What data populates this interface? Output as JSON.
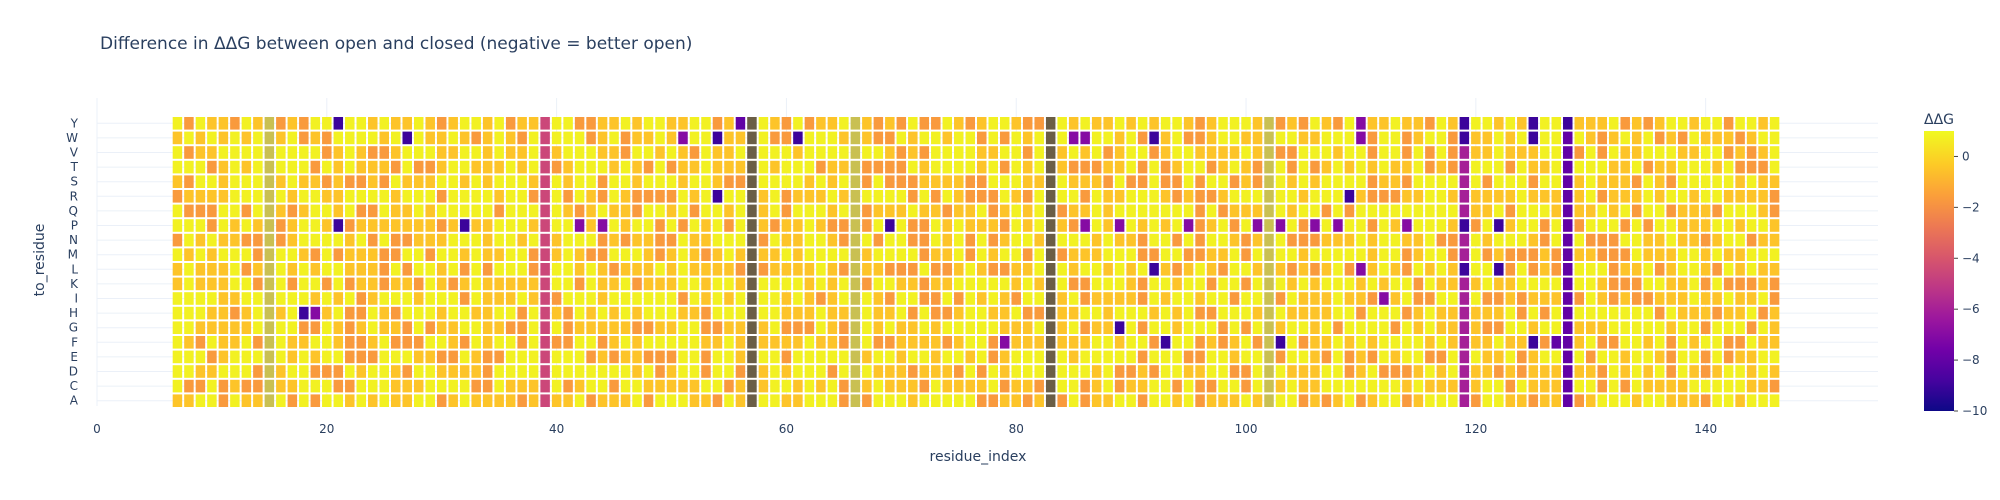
{
  "chart_data": {
    "type": "heatmap",
    "title": "Difference in ΔΔG between open and closed (negative = better open)",
    "xlabel": "residue_index",
    "ylabel": "to_residue",
    "xlim": [
      0,
      155
    ],
    "x_ticks": [
      0,
      20,
      40,
      60,
      80,
      100,
      120,
      140
    ],
    "x_ticks_labels": [
      "0",
      "20",
      "40",
      "60",
      "80",
      "100",
      "120",
      "140"
    ],
    "x_range": [
      7,
      146
    ],
    "y_categories": [
      "A",
      "C",
      "D",
      "E",
      "F",
      "G",
      "H",
      "I",
      "K",
      "L",
      "M",
      "N",
      "P",
      "Q",
      "R",
      "S",
      "T",
      "V",
      "W",
      "Y"
    ],
    "grid": true,
    "colorbar": {
      "title": "ΔΔG",
      "range": [
        -10,
        1
      ],
      "ticks": [
        0,
        -2,
        -4,
        -6,
        -8,
        -10
      ],
      "tick_labels": [
        "0",
        "−2",
        "−4",
        "−6",
        "−8",
        "−10"
      ]
    },
    "colorscale": [
      "#0d0887",
      "#46039f",
      "#7201a8",
      "#9c179e",
      "#bd3786",
      "#d8576b",
      "#ed7953",
      "#fb9f3a",
      "#fdca26",
      "#f0f921"
    ],
    "column_values": {
      "15": -0.5,
      "39": -4.5,
      "57": -1.5,
      "66": -0.5,
      "83": -1.5,
      "102": -0.5,
      "119": -6,
      "128": -8
    },
    "missing_columns": [
      57,
      83
    ],
    "cell_values": {
      "Y": {
        "21": -9,
        "56": -8,
        "110": -7,
        "119": -9,
        "125": -9,
        "128": -9
      },
      "W": {
        "27": -9,
        "51": -7,
        "54": -9,
        "61": -9,
        "85": -7,
        "86": -7,
        "92": -9,
        "110": -7,
        "119": -9,
        "125": -9
      },
      "R": {
        "54": -9,
        "109": -9
      },
      "P": {
        "21": -9,
        "32": -9,
        "42": -7,
        "44": -7,
        "69": -9,
        "86": -7,
        "89": -7,
        "95": -7,
        "101": -7,
        "103": -7,
        "106": -7,
        "108": -7,
        "114": -7,
        "119": -9,
        "122": -9
      },
      "L": {
        "92": -9,
        "110": -7,
        "119": -9,
        "122": -9
      },
      "I": {
        "112": -7
      },
      "H": {
        "18": -9,
        "19": -7
      },
      "G": {
        "89": -9
      },
      "F": {
        "79": -7,
        "93": -9,
        "103": -9,
        "125": -9,
        "127": -8
      }
    }
  }
}
